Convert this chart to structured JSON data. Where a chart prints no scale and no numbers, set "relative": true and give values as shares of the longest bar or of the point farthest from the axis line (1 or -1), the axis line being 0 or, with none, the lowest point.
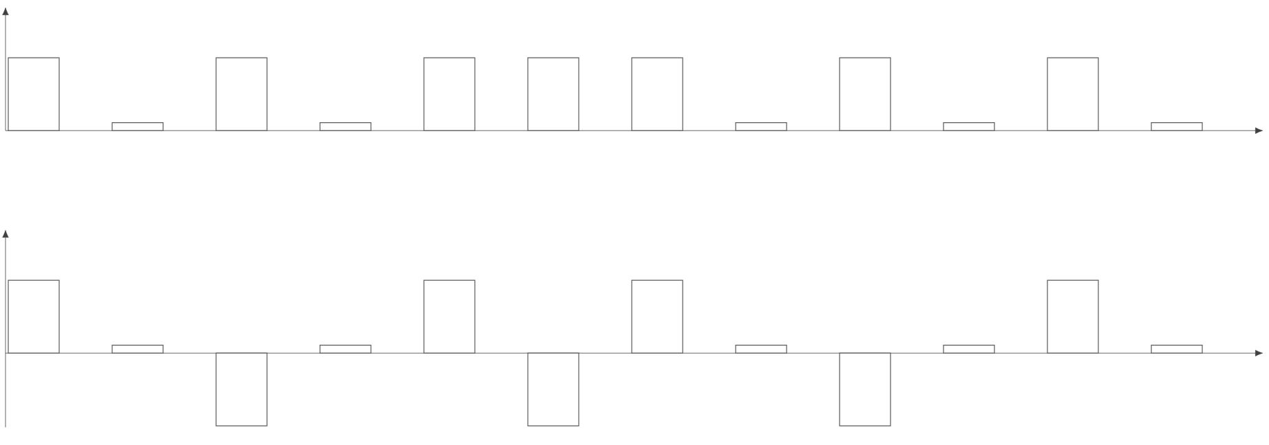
{
  "chart_data": [
    {
      "type": "bar",
      "relative": true,
      "categories": [
        null,
        null,
        null,
        null,
        null,
        null,
        null,
        null,
        null,
        null,
        null,
        null
      ],
      "color": "#ffffff",
      "values": [
        1,
        0.11,
        1,
        0.11,
        1,
        1,
        1,
        0.11,
        1,
        0.11,
        1,
        0.11
      ]
    },
    {
      "type": "bar",
      "relative": true,
      "categories": [
        null,
        null,
        null,
        null,
        null,
        null,
        null,
        null,
        null,
        null,
        null,
        null
      ],
      "color": "#ffffff",
      "values": [
        1,
        0.11,
        -1,
        0.11,
        1,
        -1,
        1,
        0.11,
        -1,
        0.11,
        1,
        0.11
      ]
    }
  ]
}
